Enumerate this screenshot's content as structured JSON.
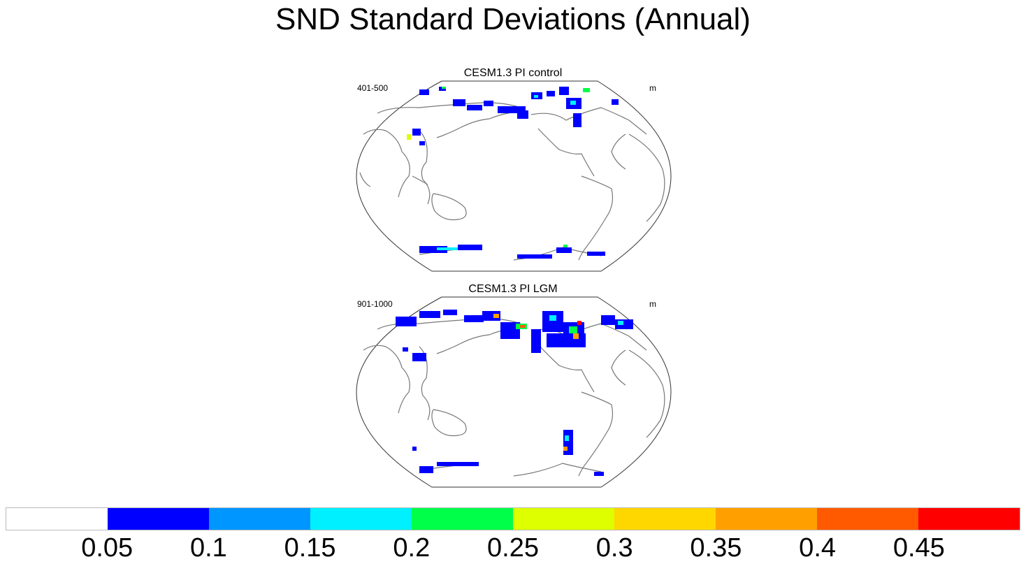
{
  "title": "SND Standard Deviations (Annual)",
  "panels": [
    {
      "title": "CESM1.3 PI control",
      "left_label": "401-500",
      "right_label": "m"
    },
    {
      "title": "CESM1.3 PI LGM",
      "left_label": "901-1000",
      "right_label": "m"
    }
  ],
  "colorbar": {
    "colors": [
      "#ffffff",
      "#0000ff",
      "#0096ff",
      "#00f0ff",
      "#00ff48",
      "#ddff00",
      "#ffd700",
      "#ffa000",
      "#ff5a00",
      "#ff0000"
    ],
    "labels": [
      "0.05",
      "0.1",
      "0.15",
      "0.2",
      "0.25",
      "0.3",
      "0.35",
      "0.4",
      "0.45"
    ]
  }
}
